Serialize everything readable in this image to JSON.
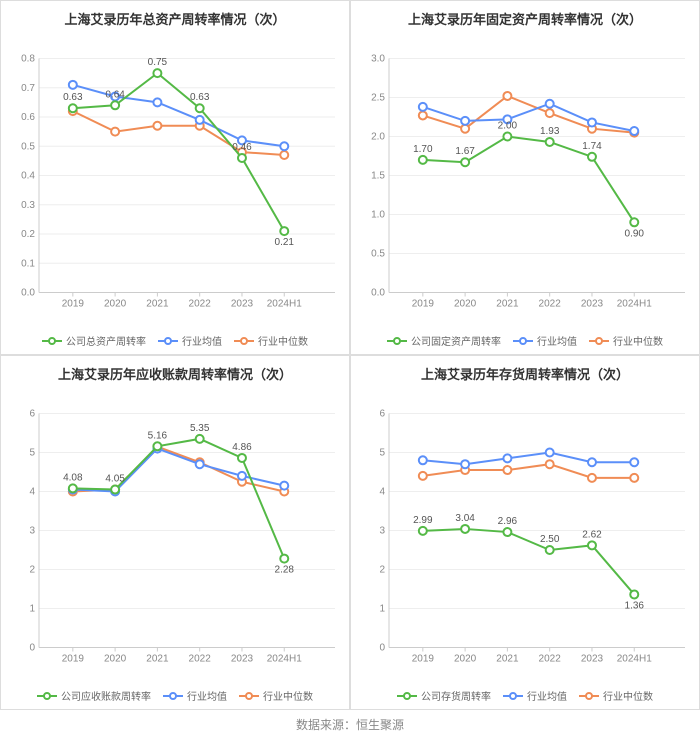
{
  "colors": {
    "company": "#54b946",
    "avg": "#5b8ff9",
    "median": "#f08c55",
    "grid": "#eeeeee",
    "axis": "#cccccc",
    "tick_text": "#888888",
    "label_text": "#555555",
    "title_text": "#333333",
    "bg": "#ffffff"
  },
  "categories": [
    "2019",
    "2020",
    "2021",
    "2022",
    "2023",
    "2024H1"
  ],
  "legend_labels": {
    "company_suffix": "",
    "avg": "行业均值",
    "median": "行业中位数"
  },
  "charts": [
    {
      "title": "上海艾录历年总资产周转率情况（次）",
      "company_legend": "公司总资产周转率",
      "ylim": [
        0,
        0.8
      ],
      "ytick_step": 0.1,
      "y_decimals": 1,
      "series": {
        "company": [
          0.63,
          0.64,
          0.75,
          0.63,
          0.46,
          0.21
        ],
        "avg": [
          0.71,
          0.67,
          0.65,
          0.59,
          0.52,
          0.5
        ],
        "median": [
          0.62,
          0.55,
          0.57,
          0.57,
          0.48,
          0.47
        ]
      },
      "labels_on": "company",
      "label_values": [
        "0.63",
        "0.64",
        "0.75",
        "0.63",
        "0.46",
        "0.21"
      ]
    },
    {
      "title": "上海艾录历年固定资产周转率情况（次）",
      "company_legend": "公司固定资产周转率",
      "ylim": [
        0,
        3
      ],
      "ytick_step": 0.5,
      "y_decimals": 1,
      "series": {
        "company": [
          1.7,
          1.67,
          2.0,
          1.93,
          1.74,
          0.9
        ],
        "avg": [
          2.38,
          2.2,
          2.22,
          2.42,
          2.18,
          2.07
        ],
        "median": [
          2.27,
          2.1,
          2.52,
          2.3,
          2.1,
          2.05
        ]
      },
      "labels_on": "company",
      "label_values": [
        "1.70",
        "1.67",
        "2.00",
        "1.93",
        "1.74",
        "0.90"
      ]
    },
    {
      "title": "上海艾录历年应收账款周转率情况（次）",
      "company_legend": "公司应收账款周转率",
      "ylim": [
        0,
        6
      ],
      "ytick_step": 1,
      "y_decimals": 0,
      "series": {
        "company": [
          4.08,
          4.05,
          5.16,
          5.35,
          4.86,
          2.28
        ],
        "avg": [
          4.05,
          4.0,
          5.1,
          4.7,
          4.4,
          4.15
        ],
        "median": [
          4.0,
          4.05,
          5.15,
          4.75,
          4.25,
          4.0
        ]
      },
      "labels_on": "company",
      "label_values": [
        "4.08",
        "4.05",
        "5.16",
        "5.35",
        "4.86",
        "2.28"
      ]
    },
    {
      "title": "上海艾录历年存货周转率情况（次）",
      "company_legend": "公司存货周转率",
      "ylim": [
        0,
        6
      ],
      "ytick_step": 1,
      "y_decimals": 0,
      "series": {
        "company": [
          2.99,
          3.04,
          2.96,
          2.5,
          2.62,
          1.36
        ],
        "avg": [
          4.8,
          4.7,
          4.85,
          5.0,
          4.75,
          4.75
        ],
        "median": [
          4.4,
          4.55,
          4.55,
          4.7,
          4.35,
          4.35
        ]
      },
      "labels_on": "company",
      "label_values": [
        "2.99",
        "3.04",
        "2.96",
        "2.50",
        "2.62",
        "1.36"
      ]
    }
  ],
  "source_text": "数据来源：恒生聚源",
  "title_fontsize": 13,
  "axis_fontsize": 10,
  "label_fontsize": 10,
  "legend_fontsize": 10,
  "line_width": 2,
  "marker_radius": 4
}
